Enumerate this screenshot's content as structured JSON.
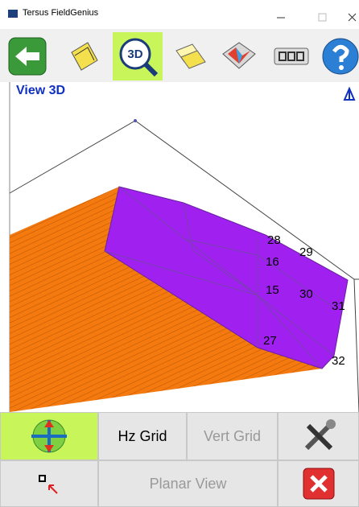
{
  "window": {
    "title": "Tersus FieldGenius"
  },
  "toolbar": {
    "view_3d_icon": "3D"
  },
  "view": {
    "title": "View 3D",
    "points": [
      {
        "label": "28"
      },
      {
        "label": "29"
      },
      {
        "label": "16"
      },
      {
        "label": "15"
      },
      {
        "label": "30"
      },
      {
        "label": "31"
      },
      {
        "label": "27"
      },
      {
        "label": "32"
      }
    ]
  },
  "buttons": {
    "hz_grid": "Hz Grid",
    "vert_grid": "Vert Grid",
    "planar_view": "Planar View"
  }
}
